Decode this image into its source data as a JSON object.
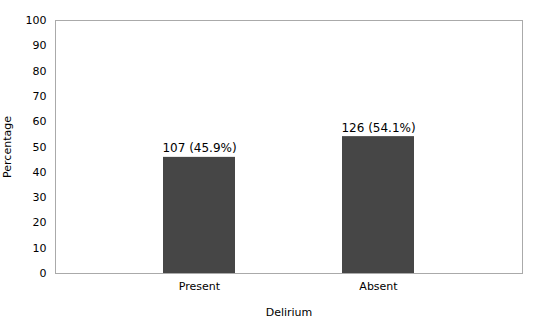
{
  "chart_data": {
    "type": "bar",
    "categories": [
      "Present",
      "Absent"
    ],
    "values": [
      45.9,
      54.1
    ],
    "value_labels": [
      "107 (45.9%)",
      "126 (54.1%)"
    ],
    "data_labels": true,
    "color": "#464646",
    "xlabel": "Delirium",
    "ylabel": "Percentage",
    "ylim": [
      0,
      100
    ],
    "yticks": [
      0,
      10,
      20,
      30,
      40,
      50,
      60,
      70,
      80,
      90,
      100
    ],
    "grid": false
  }
}
